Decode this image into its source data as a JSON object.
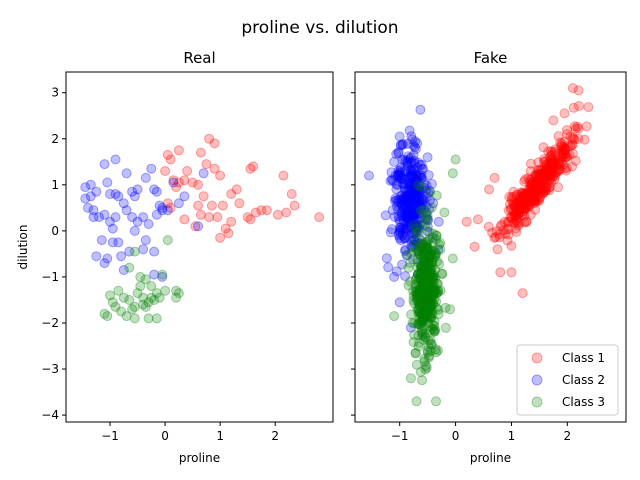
{
  "chart_data": {
    "type": "scatter",
    "title": "proline vs. dilution",
    "legend": {
      "placement": "lower-right",
      "panel": "Fake",
      "entries": [
        "Class 1",
        "Class 2",
        "Class 3"
      ]
    },
    "class_colors": {
      "Class 1": "#ff0000",
      "Class 2": "#0000ff",
      "Class 3": "#008000"
    },
    "shared_y": true,
    "panels": [
      {
        "title": "Real",
        "xlabel": "proline",
        "ylabel": "dilution",
        "xlim": [
          -1.8,
          3.05
        ],
        "ylim": [
          -4.15,
          3.45
        ],
        "xticks": [
          -1,
          0,
          1,
          2
        ],
        "yticks": [
          -4,
          -3,
          -2,
          -1,
          0,
          1,
          2,
          3
        ],
        "series": [
          {
            "name": "Class 1",
            "points": [
              [
                0.8,
                2.0
              ],
              [
                0.9,
                1.9
              ],
              [
                0.25,
                1.75
              ],
              [
                0.05,
                1.65
              ],
              [
                0.65,
                1.7
              ],
              [
                0.4,
                1.3
              ],
              [
                0.75,
                1.45
              ],
              [
                0.9,
                1.35
              ],
              [
                1.0,
                1.2
              ],
              [
                0.6,
                1.0
              ],
              [
                0.35,
                1.1
              ],
              [
                0.15,
                1.1
              ],
              [
                0.5,
                1.05
              ],
              [
                0.2,
                0.95
              ],
              [
                0.0,
                1.3
              ],
              [
                0.1,
                1.55
              ],
              [
                1.3,
                0.9
              ],
              [
                1.2,
                0.8
              ],
              [
                1.55,
                1.35
              ],
              [
                1.6,
                1.4
              ],
              [
                2.15,
                1.2
              ],
              [
                2.3,
                0.8
              ],
              [
                2.2,
                0.4
              ],
              [
                2.35,
                0.55
              ],
              [
                2.05,
                0.35
              ],
              [
                2.8,
                0.3
              ],
              [
                1.65,
                0.4
              ],
              [
                1.55,
                0.25
              ],
              [
                1.5,
                0.3
              ],
              [
                1.35,
                0.6
              ],
              [
                1.05,
                0.55
              ],
              [
                0.85,
                0.55
              ],
              [
                0.95,
                0.3
              ],
              [
                0.65,
                0.35
              ],
              [
                0.8,
                0.3
              ],
              [
                0.35,
                0.25
              ],
              [
                0.05,
                0.6
              ],
              [
                0.1,
                0.5
              ],
              [
                0.55,
                0.1
              ],
              [
                1.1,
                0.05
              ],
              [
                1.0,
                -0.15
              ],
              [
                1.15,
                -0.05
              ],
              [
                1.2,
                0.2
              ],
              [
                0.7,
                0.75
              ],
              [
                0.25,
                1.05
              ],
              [
                1.75,
                0.45
              ],
              [
                1.85,
                0.45
              ],
              [
                0.6,
                0.55
              ]
            ]
          },
          {
            "name": "Class 2",
            "points": [
              [
                -1.45,
                0.95
              ],
              [
                -1.35,
                1.0
              ],
              [
                -1.1,
                1.45
              ],
              [
                -0.9,
                1.55
              ],
              [
                -1.05,
                1.05
              ],
              [
                -0.7,
                1.25
              ],
              [
                -0.5,
                0.9
              ],
              [
                -0.25,
                1.35
              ],
              [
                -0.35,
                1.15
              ],
              [
                0.15,
                1.05
              ],
              [
                0.25,
                0.6
              ],
              [
                0.35,
                0.75
              ],
              [
                -0.15,
                0.85
              ],
              [
                -0.2,
                0.9
              ],
              [
                -0.05,
                0.5
              ],
              [
                0.05,
                0.45
              ],
              [
                0.7,
                1.25
              ],
              [
                0.6,
                0.1
              ],
              [
                -0.5,
                0.2
              ],
              [
                -0.6,
                0.3
              ],
              [
                -0.4,
                0.3
              ],
              [
                -0.75,
                0.6
              ],
              [
                -0.85,
                0.75
              ],
              [
                -0.9,
                0.8
              ],
              [
                -1.0,
                0.8
              ],
              [
                -1.25,
                0.85
              ],
              [
                -1.35,
                0.75
              ],
              [
                -1.45,
                0.7
              ],
              [
                -1.4,
                0.5
              ],
              [
                -1.2,
                0.3
              ],
              [
                -1.1,
                0.35
              ],
              [
                -1.3,
                0.3
              ],
              [
                -1.15,
                -0.2
              ],
              [
                -1.25,
                -0.55
              ],
              [
                -1.05,
                -0.6
              ],
              [
                -1.1,
                -0.7
              ],
              [
                -0.95,
                -0.25
              ],
              [
                -0.85,
                -0.25
              ],
              [
                -0.8,
                -0.55
              ],
              [
                -0.75,
                -0.85
              ],
              [
                -0.65,
                -0.45
              ],
              [
                -0.55,
                0.0
              ],
              [
                -0.4,
                -0.4
              ],
              [
                -0.3,
                0.15
              ],
              [
                -0.2,
                -0.45
              ],
              [
                -0.15,
                0.35
              ],
              [
                -0.05,
                0.45
              ],
              [
                -0.7,
                0.45
              ],
              [
                -0.6,
                0.85
              ],
              [
                -0.55,
                0.75
              ],
              [
                -0.95,
                0.05
              ],
              [
                -1.3,
                0.45
              ],
              [
                -0.2,
                -0.95
              ],
              [
                -0.1,
                0.55
              ],
              [
                -0.9,
                0.3
              ],
              [
                -1.0,
                0.2
              ],
              [
                -0.05,
                -1.0
              ],
              [
                -0.35,
                -0.2
              ]
            ]
          },
          {
            "name": "Class 3",
            "points": [
              [
                -1.05,
                -1.85
              ],
              [
                -1.1,
                -1.8
              ],
              [
                -1.0,
                -1.4
              ],
              [
                -0.85,
                -1.3
              ],
              [
                -0.9,
                -1.65
              ],
              [
                -0.8,
                -1.75
              ],
              [
                -0.75,
                -1.45
              ],
              [
                -0.65,
                -1.5
              ],
              [
                -0.55,
                -1.9
              ],
              [
                -0.5,
                -1.35
              ],
              [
                -0.45,
                -1.2
              ],
              [
                -0.4,
                -1.45
              ],
              [
                -0.35,
                -1.05
              ],
              [
                -0.3,
                -1.55
              ],
              [
                -0.25,
                -1.2
              ],
              [
                -0.2,
                -1.5
              ],
              [
                -0.15,
                -1.9
              ],
              [
                -0.1,
                -1.45
              ],
              [
                -0.05,
                -0.95
              ],
              [
                0.05,
                -0.2
              ],
              [
                0.2,
                -1.45
              ],
              [
                0.25,
                -1.35
              ],
              [
                -0.65,
                -0.8
              ],
              [
                -0.55,
                -0.45
              ],
              [
                -0.45,
                -1.0
              ],
              [
                -0.35,
                -1.65
              ],
              [
                -0.25,
                -1.45
              ],
              [
                -0.6,
                -1.7
              ],
              [
                -0.7,
                -1.85
              ],
              [
                -0.95,
                -1.55
              ],
              [
                0.2,
                -1.3
              ],
              [
                -0.4,
                -1.6
              ],
              [
                -0.55,
                -1.65
              ],
              [
                -0.3,
                -1.9
              ],
              [
                -0.15,
                -1.35
              ],
              [
                0.0,
                -1.3
              ]
            ]
          }
        ]
      },
      {
        "title": "Fake",
        "xlabel": "proline",
        "ylabel": "",
        "xlim": [
          -1.8,
          3.05
        ],
        "ylim": [
          -4.15,
          3.45
        ],
        "xticks": [
          -1,
          0,
          1,
          2
        ],
        "yticks": [
          -4,
          -3,
          -2,
          -1,
          0,
          1,
          2,
          3
        ],
        "series": [
          {
            "name": "Class 1",
            "generated": {
              "count": 360,
              "seed": 11,
              "center": [
                1.45,
                0.95
              ],
              "spread": [
                0.32,
                0.22
              ],
              "slope": 1.45,
              "outliers": [
                [
                  2.1,
                  3.1
                ],
                [
                  2.2,
                  3.05
                ],
                [
                  1.95,
                  2.55
                ],
                [
                  1.75,
                  2.4
                ],
                [
                  0.7,
                  1.15
                ],
                [
                  0.6,
                  0.9
                ],
                [
                  0.4,
                  0.25
                ],
                [
                  0.2,
                  0.2
                ],
                [
                  0.75,
                  -0.4
                ],
                [
                  0.8,
                  -0.9
                ],
                [
                  1.2,
                  -1.35
                ],
                [
                  1.0,
                  -0.9
                ]
              ]
            }
          },
          {
            "name": "Class 2",
            "generated": {
              "count": 330,
              "seed": 23,
              "center": [
                -0.82,
                0.6
              ],
              "spread": [
                0.15,
                0.62
              ],
              "slope": 0.0,
              "outliers": [
                [
                  -1.55,
                  1.2
                ],
                [
                  -1.0,
                  2.05
                ],
                [
                  -0.5,
                  1.6
                ],
                [
                  -1.1,
                  -1.0
                ],
                [
                  -1.0,
                  -1.55
                ],
                [
                  -0.8,
                  -2.1
                ],
                [
                  -0.4,
                  0.6
                ],
                [
                  -0.3,
                  0.2
                ]
              ]
            }
          },
          {
            "name": "Class 3",
            "generated": {
              "count": 380,
              "seed": 37,
              "center": [
                -0.52,
                -1.25
              ],
              "spread": [
                0.12,
                0.72
              ],
              "slope": 0.0,
              "outliers": [
                [
                  -0.7,
                  -3.7
                ],
                [
                  -0.35,
                  -3.7
                ],
                [
                  -0.8,
                  -3.2
                ],
                [
                  0.0,
                  1.55
                ],
                [
                  -0.05,
                  1.25
                ],
                [
                  -0.2,
                  0.4
                ],
                [
                  -0.05,
                  -0.6
                ],
                [
                  -0.1,
                  -1.7
                ],
                [
                  -1.1,
                  -1.85
                ]
              ]
            }
          }
        ]
      }
    ]
  }
}
